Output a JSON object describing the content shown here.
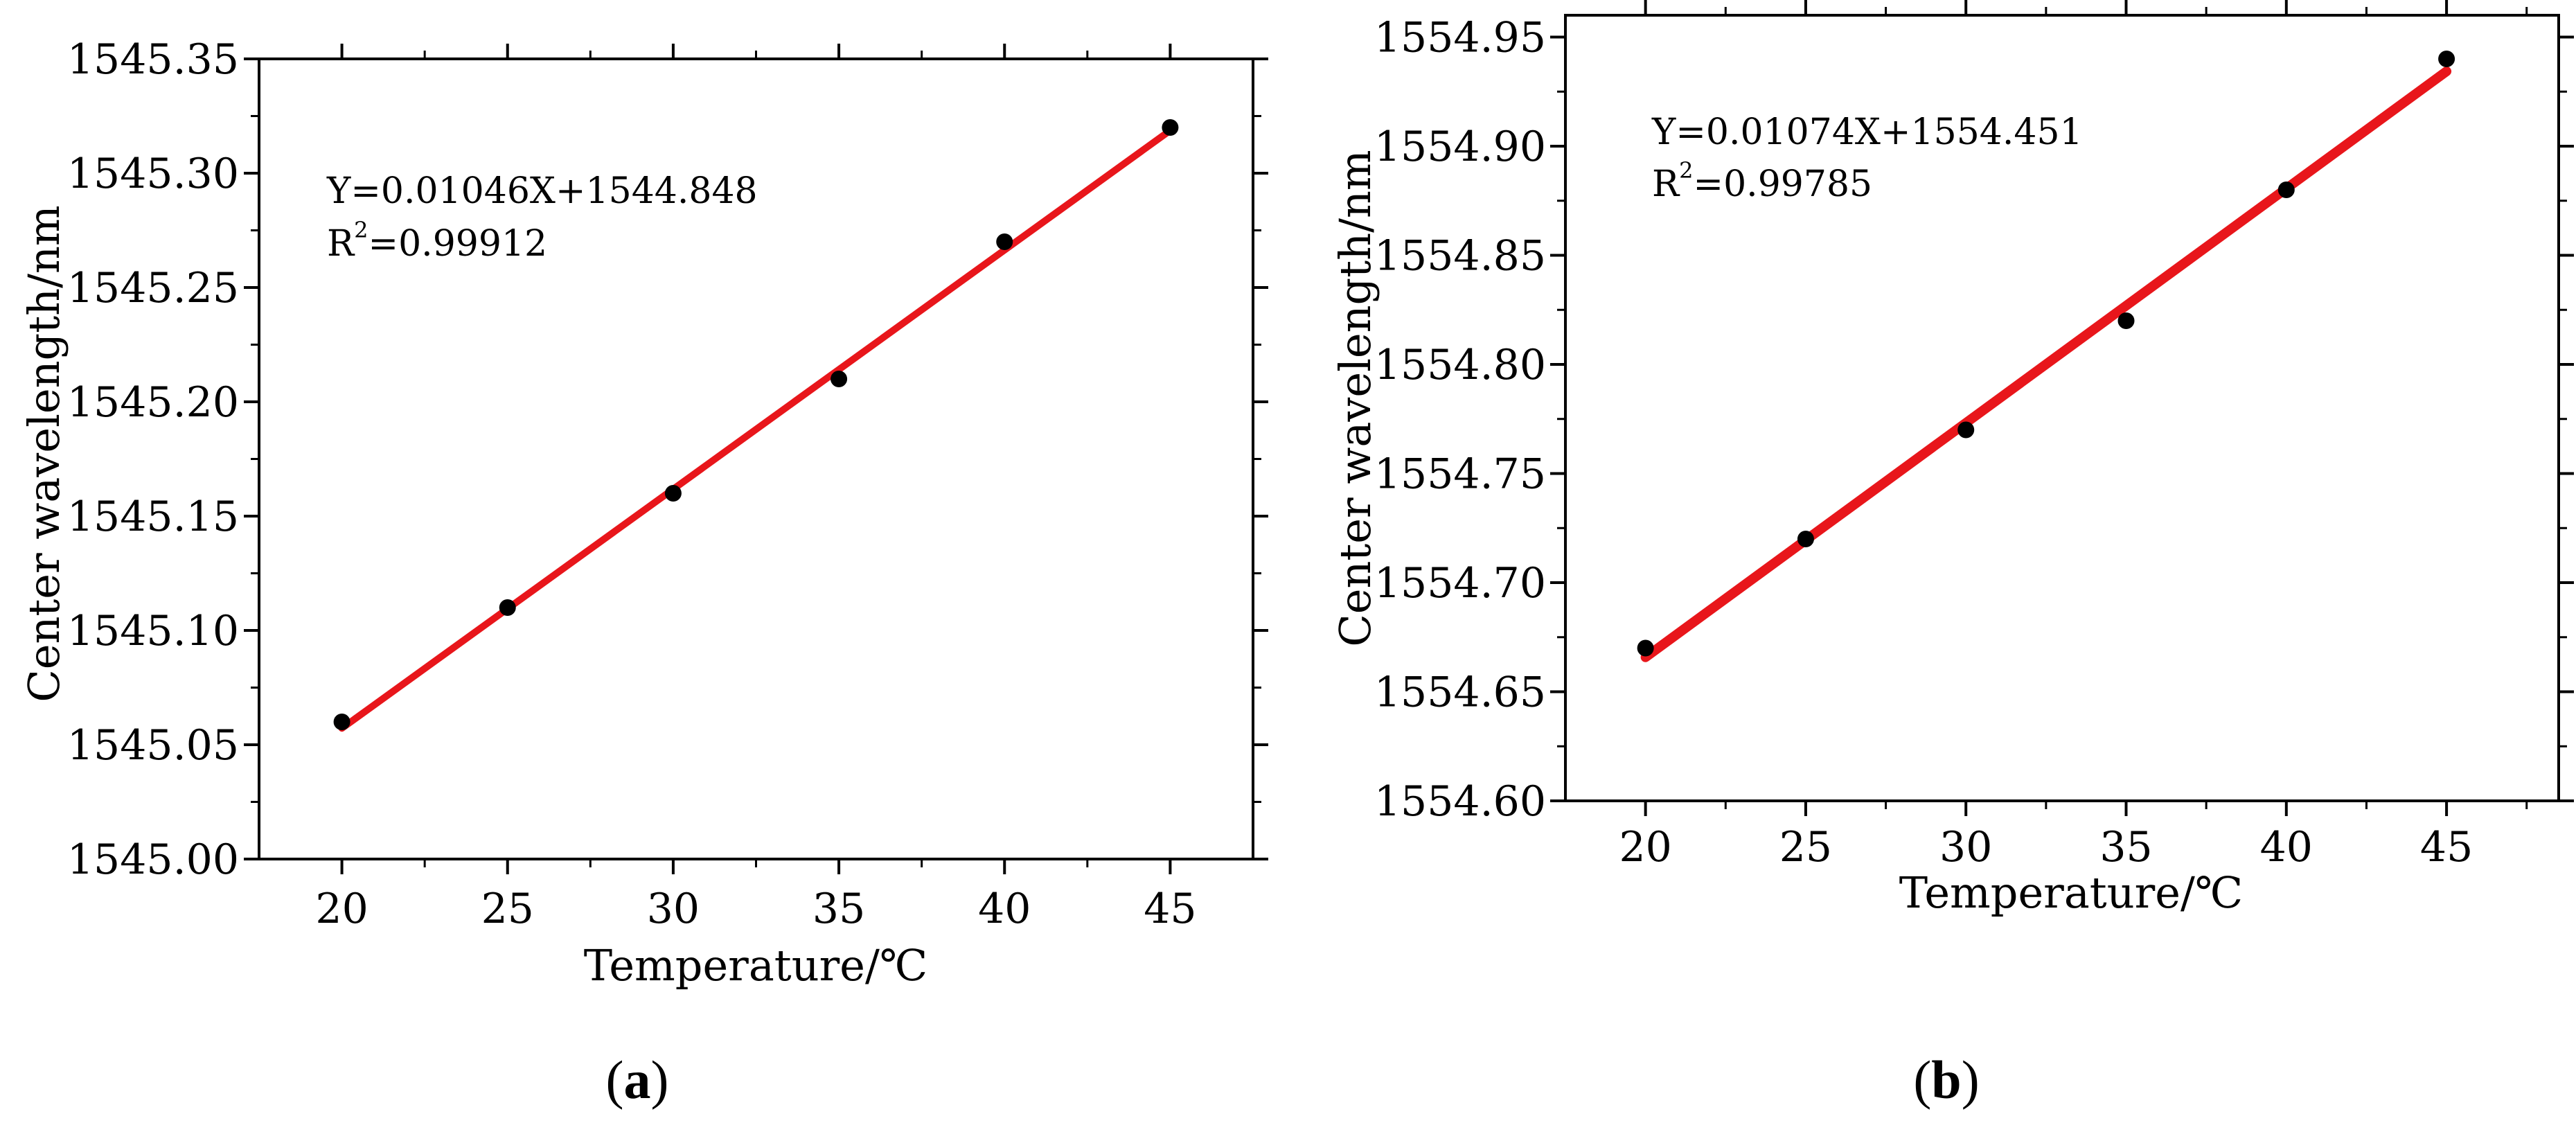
{
  "chart_data": [
    {
      "type": "scatter",
      "panel_label": "a",
      "xlabel": "Temperature/℃",
      "ylabel": "Center wavelength/nm",
      "xlim": [
        17.5,
        47.5
      ],
      "ylim": [
        1545.0,
        1545.35
      ],
      "x_ticks": [
        "20",
        "25",
        "30",
        "35",
        "40",
        "45"
      ],
      "y_ticks": [
        "1545.00",
        "1545.05",
        "1545.10",
        "1545.15",
        "1545.20",
        "1545.25",
        "1545.30",
        "1545.35"
      ],
      "points": [
        {
          "x": 20,
          "y": 1545.06
        },
        {
          "x": 25,
          "y": 1545.11
        },
        {
          "x": 30,
          "y": 1545.16
        },
        {
          "x": 35,
          "y": 1545.21
        },
        {
          "x": 40,
          "y": 1545.27
        },
        {
          "x": 45,
          "y": 1545.32
        }
      ],
      "fit": {
        "slope": 0.01046,
        "intercept": 1544.848,
        "x_range": [
          20,
          45
        ],
        "color": "#e8161b"
      },
      "equation_text": "Y=0.01046X+1544.848",
      "r2_prefix": "R",
      "r2_sup": "2",
      "r2_value": "=0.99912",
      "grid": false
    },
    {
      "type": "scatter",
      "panel_label": "b",
      "xlabel": "Temperature/℃",
      "ylabel": "Center wavelength/nm",
      "xlim": [
        17.5,
        48.5
      ],
      "ylim": [
        1554.6,
        1554.96
      ],
      "x_ticks": [
        "20",
        "25",
        "30",
        "35",
        "40",
        "45"
      ],
      "y_ticks": [
        "1554.60",
        "1554.65",
        "1554.70",
        "1554.75",
        "1554.80",
        "1554.85",
        "1554.90",
        "1554.95"
      ],
      "points": [
        {
          "x": 20,
          "y": 1554.67
        },
        {
          "x": 25,
          "y": 1554.72
        },
        {
          "x": 30,
          "y": 1554.77
        },
        {
          "x": 35,
          "y": 1554.82
        },
        {
          "x": 40,
          "y": 1554.88
        },
        {
          "x": 45,
          "y": 1554.94
        }
      ],
      "fit": {
        "slope": 0.01074,
        "intercept": 1554.451,
        "x_range": [
          20,
          45
        ],
        "color": "#e8161b"
      },
      "equation_text": "Y=0.01074X+1554.451",
      "r2_prefix": "R",
      "r2_sup": "2",
      "r2_value": "=0.99785",
      "grid": false
    }
  ],
  "captions": {
    "a": {
      "open": "(",
      "letter": "a",
      "close": ")"
    },
    "b": {
      "open": "(",
      "letter": "b",
      "close": ")"
    }
  }
}
